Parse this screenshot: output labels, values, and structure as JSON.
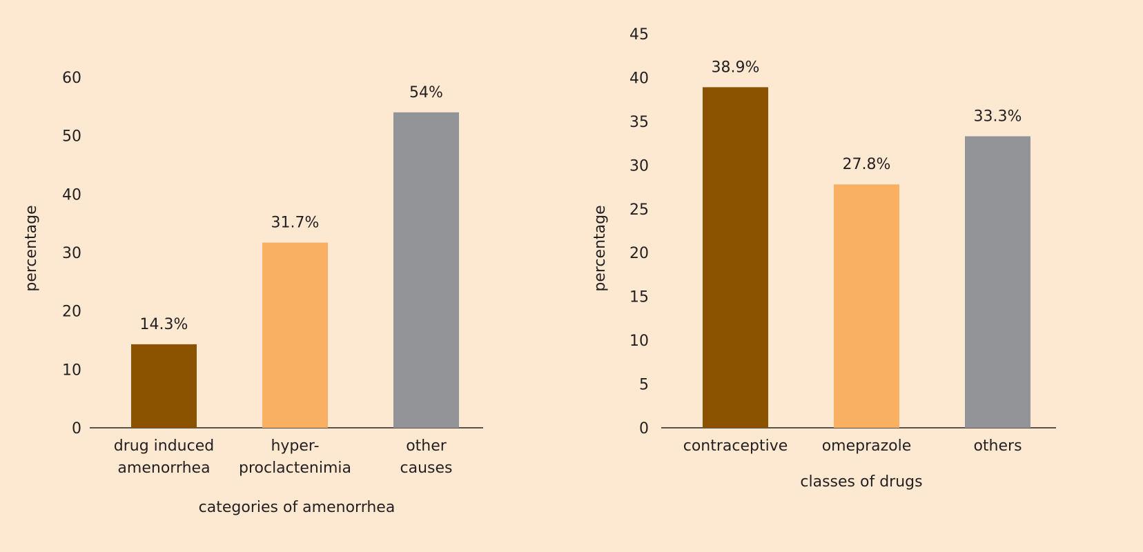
{
  "chart_data": [
    {
      "type": "bar",
      "title": "",
      "xlabel": "categories of amenorrhea",
      "ylabel": "percentage",
      "ylim": [
        0,
        60
      ],
      "yticks": [
        0,
        10,
        20,
        30,
        40,
        50,
        60
      ],
      "grid": false,
      "categories": [
        [
          "drug induced",
          "amenorrhea"
        ],
        [
          "hyper-",
          "proclactenimia"
        ],
        [
          "other",
          "causes"
        ]
      ],
      "values": [
        14.3,
        31.7,
        54
      ],
      "value_labels": [
        "14.3%",
        "31.7%",
        "54%"
      ],
      "colors": [
        "#8B5200",
        "#F9B063",
        "#929497"
      ]
    },
    {
      "type": "bar",
      "title": "",
      "xlabel": "classes of drugs",
      "ylabel": "percentage",
      "ylim": [
        0,
        45
      ],
      "yticks": [
        0,
        5,
        10,
        15,
        20,
        25,
        30,
        35,
        40,
        45
      ],
      "grid": false,
      "categories": [
        [
          "contraceptive"
        ],
        [
          "omeprazole"
        ],
        [
          "others"
        ]
      ],
      "values": [
        38.9,
        27.8,
        33.3
      ],
      "value_labels": [
        "38.9%",
        "27.8%",
        "33.3%"
      ],
      "colors": [
        "#8B5200",
        "#F9B063",
        "#929497"
      ]
    }
  ]
}
